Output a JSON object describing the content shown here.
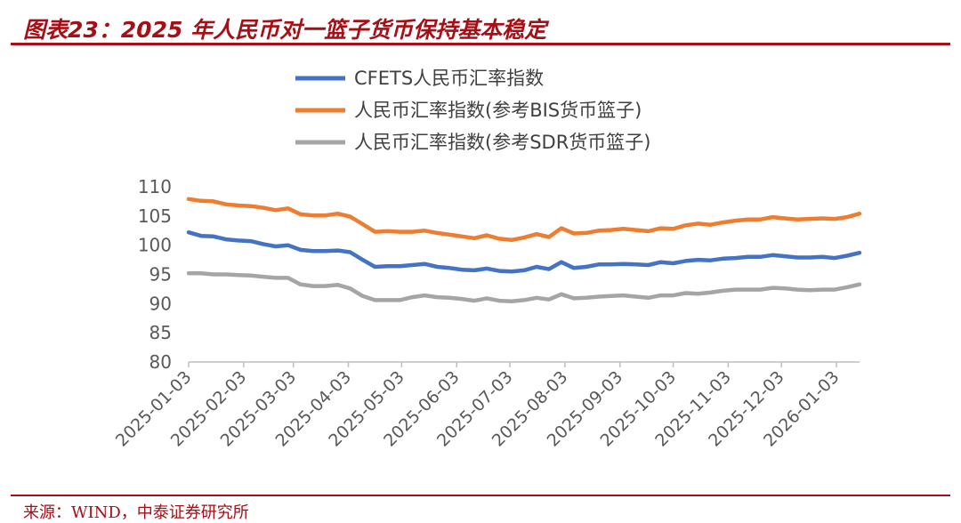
{
  "title": "图表23：2025 年人民币对一篮子货币保持基本稳定",
  "source": "来源：WIND，中泰证券研究所",
  "colors": {
    "accent": "#a50f15",
    "cfets": "#4472c4",
    "bis": "#ed7d31",
    "sdr": "#a5a5a5"
  },
  "chart_data": {
    "type": "line",
    "legend_position": "top",
    "grid": false,
    "ylim": [
      80,
      110
    ],
    "y_ticks": [
      80,
      85,
      90,
      95,
      100,
      105,
      110
    ],
    "x_range": [
      "2025-01-03",
      "2026-01-16"
    ],
    "x_ticks": [
      "2025-01-03",
      "2025-02-03",
      "2025-03-03",
      "2025-04-03",
      "2025-05-03",
      "2025-06-03",
      "2025-07-03",
      "2025-08-03",
      "2025-09-03",
      "2025-10-03",
      "2025-11-03",
      "2025-12-03",
      "2026-01-03"
    ],
    "x": [
      "2025-01-03",
      "2025-01-10",
      "2025-01-17",
      "2025-01-24",
      "2025-01-31",
      "2025-02-07",
      "2025-02-14",
      "2025-02-21",
      "2025-02-28",
      "2025-03-07",
      "2025-03-14",
      "2025-03-21",
      "2025-03-28",
      "2025-04-04",
      "2025-04-11",
      "2025-04-18",
      "2025-04-25",
      "2025-05-02",
      "2025-05-09",
      "2025-05-16",
      "2025-05-23",
      "2025-05-30",
      "2025-06-06",
      "2025-06-13",
      "2025-06-20",
      "2025-06-27",
      "2025-07-04",
      "2025-07-11",
      "2025-07-18",
      "2025-07-25",
      "2025-08-01",
      "2025-08-08",
      "2025-08-15",
      "2025-08-22",
      "2025-08-29",
      "2025-09-05",
      "2025-09-12",
      "2025-09-19",
      "2025-09-26",
      "2025-10-03",
      "2025-10-10",
      "2025-10-17",
      "2025-10-24",
      "2025-10-31",
      "2025-11-07",
      "2025-11-14",
      "2025-11-21",
      "2025-11-28",
      "2025-12-05",
      "2025-12-12",
      "2025-12-19",
      "2025-12-26",
      "2026-01-02",
      "2026-01-09",
      "2026-01-16"
    ],
    "series": [
      {
        "name": "CFETS人民币汇率指数",
        "values": [
          102.2,
          101.6,
          101.5,
          101.0,
          100.8,
          100.7,
          100.2,
          99.8,
          100.0,
          99.2,
          99.0,
          99.0,
          99.1,
          98.8,
          97.5,
          96.3,
          96.4,
          96.4,
          96.6,
          96.8,
          96.3,
          96.1,
          95.8,
          95.7,
          96.0,
          95.6,
          95.5,
          95.7,
          96.3,
          95.9,
          97.1,
          96.1,
          96.3,
          96.7,
          96.7,
          96.8,
          96.7,
          96.6,
          97.1,
          96.9,
          97.3,
          97.5,
          97.4,
          97.7,
          97.8,
          98.0,
          98.0,
          98.3,
          98.1,
          97.9,
          97.9,
          98.0,
          97.8,
          98.2,
          98.7
        ]
      },
      {
        "name": "人民币汇率指数(参考BIS货币篮子)",
        "values": [
          107.9,
          107.6,
          107.5,
          107.0,
          106.8,
          106.7,
          106.4,
          106.0,
          106.3,
          105.3,
          105.1,
          105.1,
          105.4,
          104.9,
          103.6,
          102.3,
          102.4,
          102.3,
          102.3,
          102.5,
          102.1,
          101.8,
          101.5,
          101.2,
          101.7,
          101.1,
          100.9,
          101.3,
          101.9,
          101.4,
          102.9,
          102.0,
          102.1,
          102.5,
          102.6,
          102.8,
          102.6,
          102.4,
          102.9,
          102.8,
          103.4,
          103.7,
          103.5,
          103.9,
          104.2,
          104.4,
          104.4,
          104.8,
          104.6,
          104.4,
          104.5,
          104.6,
          104.5,
          104.8,
          105.4
        ]
      },
      {
        "name": "人民币汇率指数(参考SDR货币篮子)",
        "values": [
          95.2,
          95.2,
          95.0,
          95.0,
          94.9,
          94.8,
          94.6,
          94.4,
          94.4,
          93.3,
          93.0,
          93.0,
          93.2,
          92.6,
          91.3,
          90.6,
          90.6,
          90.6,
          91.1,
          91.4,
          91.1,
          91.0,
          90.8,
          90.5,
          90.9,
          90.5,
          90.4,
          90.6,
          91.0,
          90.7,
          91.6,
          90.9,
          91.0,
          91.2,
          91.3,
          91.4,
          91.2,
          91.0,
          91.4,
          91.4,
          91.8,
          91.7,
          91.9,
          92.2,
          92.4,
          92.4,
          92.4,
          92.7,
          92.6,
          92.4,
          92.3,
          92.4,
          92.4,
          92.8,
          93.3
        ]
      }
    ]
  }
}
